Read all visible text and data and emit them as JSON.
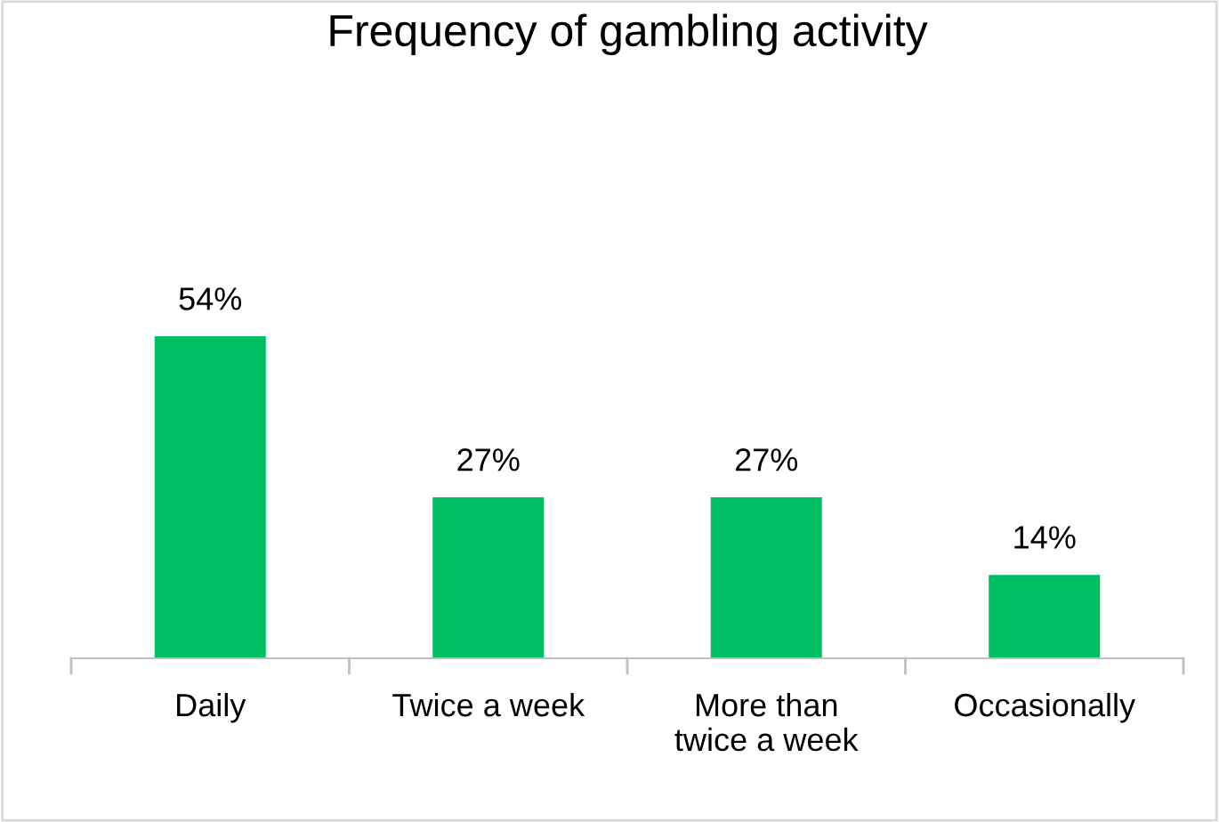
{
  "chart_data": {
    "type": "bar",
    "title": "Frequency of gambling activity",
    "categories": [
      "Daily",
      "Twice a week",
      "More than twice a week",
      "Occasionally"
    ],
    "values": [
      54,
      27,
      27,
      14
    ],
    "value_labels": [
      "54%",
      "27%",
      "27%",
      "14%"
    ],
    "color": "#00bf63",
    "grid": false,
    "legend": false
  }
}
